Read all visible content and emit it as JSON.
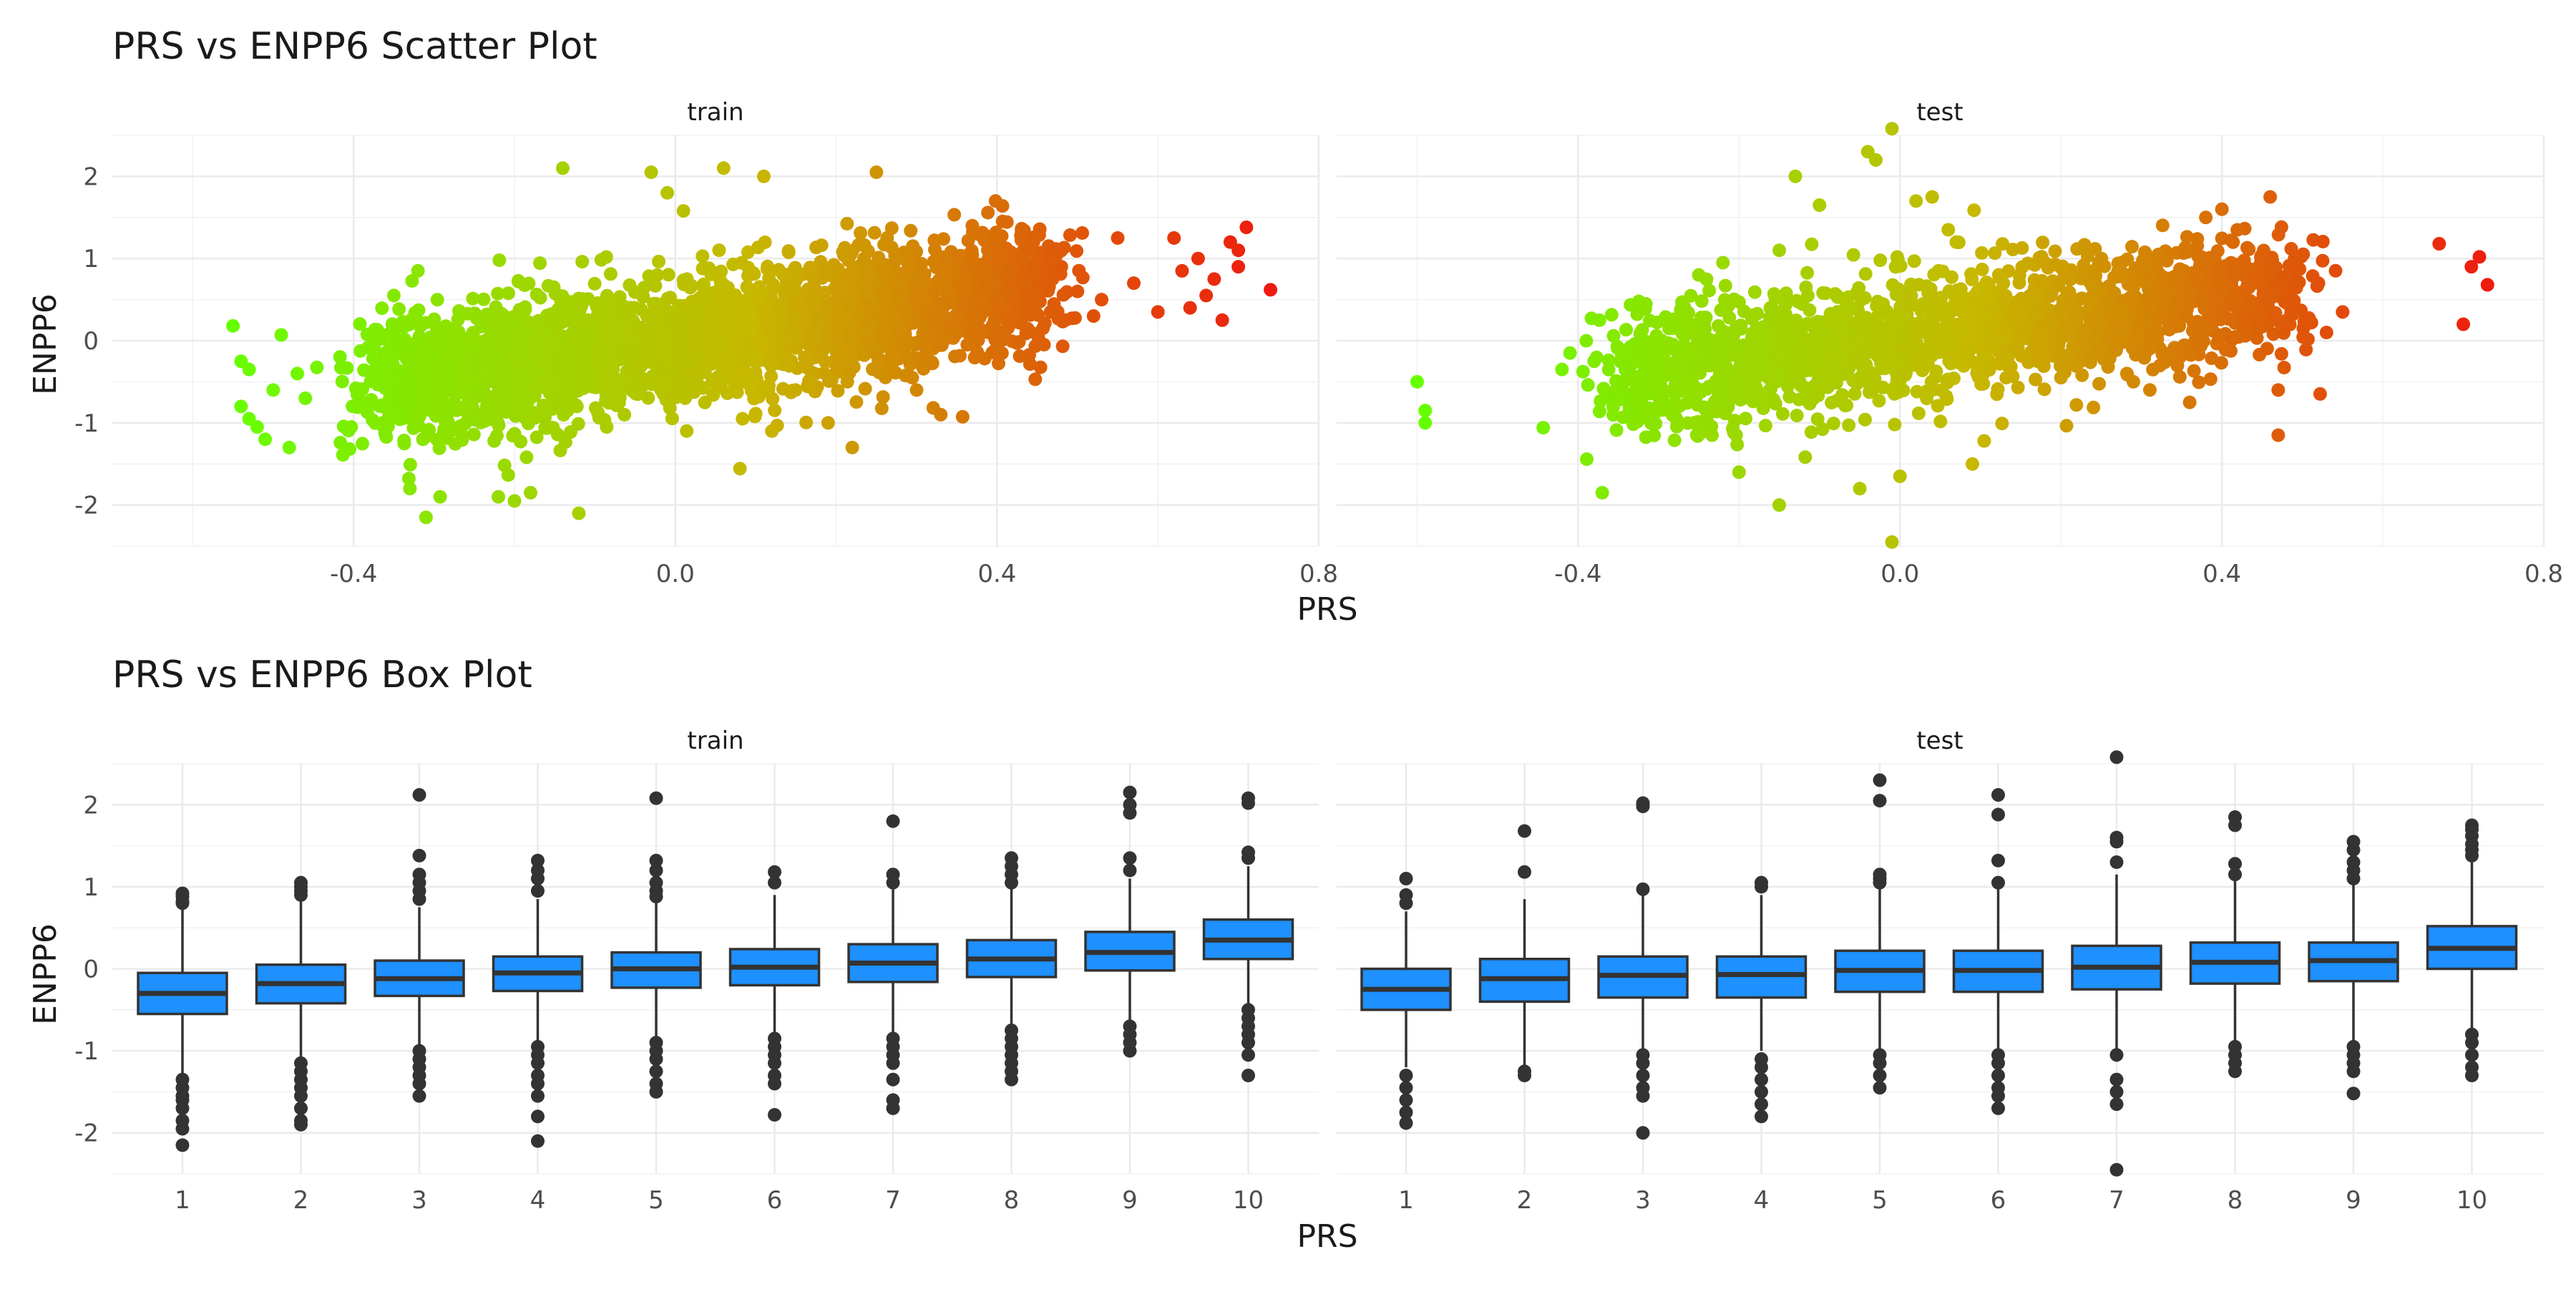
{
  "chart_data": [
    {
      "type": "scatter",
      "title": "PRS vs ENPP6 Scatter Plot",
      "xlabel": "PRS",
      "ylabel": "ENPP6",
      "facets": [
        "train",
        "test"
      ],
      "xlim": [
        -0.7,
        0.8
      ],
      "ylim": [
        -2.5,
        2.5
      ],
      "x_ticks": [
        -0.4,
        0.0,
        0.4,
        0.8
      ],
      "x_tick_labels": [
        "-0.4",
        "0.0",
        "0.4",
        "0.8"
      ],
      "y_ticks": [
        -2,
        -1,
        0,
        1,
        2
      ],
      "y_tick_labels": [
        "-2",
        "-1",
        "0",
        "1",
        "2"
      ],
      "grid": true,
      "color_scale": {
        "low": "#66ff00",
        "mid": "#c7b800",
        "high": "#ee1a0f",
        "mapped_to": "PRS"
      },
      "panels": [
        {
          "facet": "train",
          "trend": {
            "slope": 1.45,
            "intercept": 0.0
          },
          "core": {
            "x_min": -0.38,
            "x_max": 0.46,
            "y_spread": 0.95
          },
          "points": [
            {
              "x": -0.55,
              "y": 0.18
            },
            {
              "x": -0.54,
              "y": -0.25
            },
            {
              "x": -0.53,
              "y": -0.35
            },
            {
              "x": -0.54,
              "y": -0.8
            },
            {
              "x": -0.53,
              "y": -0.95
            },
            {
              "x": -0.52,
              "y": -1.05
            },
            {
              "x": -0.51,
              "y": -1.2
            },
            {
              "x": -0.5,
              "y": -0.6
            },
            {
              "x": -0.49,
              "y": 0.07
            },
            {
              "x": -0.48,
              "y": -1.3
            },
            {
              "x": -0.47,
              "y": -0.4
            },
            {
              "x": -0.46,
              "y": -0.7
            },
            {
              "x": -0.35,
              "y": 0.55
            },
            {
              "x": -0.32,
              "y": 0.85
            },
            {
              "x": -0.31,
              "y": -2.15
            },
            {
              "x": -0.33,
              "y": -1.8
            },
            {
              "x": -0.22,
              "y": -1.9
            },
            {
              "x": -0.2,
              "y": -1.95
            },
            {
              "x": -0.18,
              "y": -1.85
            },
            {
              "x": -0.12,
              "y": -2.1
            },
            {
              "x": -0.14,
              "y": 2.1
            },
            {
              "x": -0.03,
              "y": 2.05
            },
            {
              "x": -0.01,
              "y": 1.8
            },
            {
              "x": 0.06,
              "y": 2.1
            },
            {
              "x": 0.11,
              "y": 2.0
            },
            {
              "x": 0.25,
              "y": 2.05
            },
            {
              "x": 0.22,
              "y": -1.3
            },
            {
              "x": 0.19,
              "y": -1.0
            },
            {
              "x": 0.33,
              "y": -0.9
            },
            {
              "x": 0.3,
              "y": -0.6
            },
            {
              "x": 0.12,
              "y": -1.1
            },
            {
              "x": 0.48,
              "y": 0.9
            },
            {
              "x": 0.5,
              "y": 0.6
            },
            {
              "x": 0.53,
              "y": 0.5
            },
            {
              "x": 0.52,
              "y": 0.3
            },
            {
              "x": 0.55,
              "y": 1.25
            },
            {
              "x": 0.6,
              "y": 0.35
            },
            {
              "x": 0.62,
              "y": 1.25
            },
            {
              "x": 0.63,
              "y": 0.85
            },
            {
              "x": 0.64,
              "y": 0.4
            },
            {
              "x": 0.65,
              "y": 1.0
            },
            {
              "x": 0.67,
              "y": 0.75
            },
            {
              "x": 0.68,
              "y": 0.25
            },
            {
              "x": 0.69,
              "y": 1.2
            },
            {
              "x": 0.7,
              "y": 1.1
            },
            {
              "x": 0.71,
              "y": 1.38
            },
            {
              "x": 0.7,
              "y": 0.9
            },
            {
              "x": 0.74,
              "y": 0.62
            },
            {
              "x": 0.66,
              "y": 0.55
            },
            {
              "x": 0.57,
              "y": 0.7
            }
          ]
        },
        {
          "facet": "test",
          "trend": {
            "slope": 1.25,
            "intercept": 0.0
          },
          "core": {
            "x_min": -0.35,
            "x_max": 0.48,
            "y_spread": 0.9
          },
          "points": [
            {
              "x": -0.6,
              "y": -0.5
            },
            {
              "x": -0.59,
              "y": -0.85
            },
            {
              "x": -0.59,
              "y": -1.0
            },
            {
              "x": -0.42,
              "y": -0.35
            },
            {
              "x": -0.41,
              "y": -0.15
            },
            {
              "x": -0.38,
              "y": -0.25
            },
            {
              "x": -0.37,
              "y": -1.85
            },
            {
              "x": -0.2,
              "y": -1.6
            },
            {
              "x": -0.15,
              "y": -2.0
            },
            {
              "x": -0.05,
              "y": -1.8
            },
            {
              "x": -0.01,
              "y": -2.45
            },
            {
              "x": 0.0,
              "y": -1.65
            },
            {
              "x": 0.09,
              "y": -1.5
            },
            {
              "x": -0.13,
              "y": 2.0
            },
            {
              "x": -0.04,
              "y": 2.3
            },
            {
              "x": -0.03,
              "y": 2.2
            },
            {
              "x": -0.01,
              "y": 2.58
            },
            {
              "x": 0.02,
              "y": 1.7
            },
            {
              "x": 0.04,
              "y": 1.75
            },
            {
              "x": 0.06,
              "y": 1.35
            },
            {
              "x": 0.07,
              "y": 1.2
            },
            {
              "x": -0.1,
              "y": 1.65
            },
            {
              "x": -0.15,
              "y": 1.1
            },
            {
              "x": 0.4,
              "y": 1.6
            },
            {
              "x": 0.38,
              "y": 1.5
            },
            {
              "x": 0.46,
              "y": 1.75
            },
            {
              "x": 0.52,
              "y": 0.7
            },
            {
              "x": 0.55,
              "y": 0.35
            },
            {
              "x": 0.53,
              "y": 0.1
            },
            {
              "x": 0.47,
              "y": -0.6
            },
            {
              "x": 0.47,
              "y": -1.15
            },
            {
              "x": 0.36,
              "y": -0.75
            },
            {
              "x": 0.29,
              "y": -0.5
            },
            {
              "x": 0.2,
              "y": -0.45
            },
            {
              "x": 0.67,
              "y": 1.18
            },
            {
              "x": 0.7,
              "y": 0.2
            },
            {
              "x": 0.71,
              "y": 0.9
            },
            {
              "x": 0.72,
              "y": 1.02
            },
            {
              "x": 0.73,
              "y": 0.68
            },
            {
              "x": 0.43,
              "y": 0.9
            },
            {
              "x": 0.45,
              "y": 0.8
            },
            {
              "x": -0.25,
              "y": 0.8
            },
            {
              "x": -0.22,
              "y": 0.95
            }
          ]
        }
      ]
    },
    {
      "type": "box",
      "title": "PRS vs ENPP6 Box Plot",
      "xlabel": "PRS",
      "ylabel": "ENPP6",
      "facets": [
        "train",
        "test"
      ],
      "categories": [
        "1",
        "2",
        "3",
        "4",
        "5",
        "6",
        "7",
        "8",
        "9",
        "10"
      ],
      "ylim": [
        -2.5,
        2.5
      ],
      "y_ticks": [
        -2,
        -1,
        0,
        1,
        2
      ],
      "y_tick_labels": [
        "-2",
        "-1",
        "0",
        "1",
        "2"
      ],
      "grid": true,
      "box_fill": "#1e90ff",
      "box_outline": "#333333",
      "panels": [
        {
          "facet": "train",
          "boxes": [
            {
              "category": "1",
              "q1": -0.55,
              "median": -0.3,
              "q3": -0.05,
              "whisker_low": -1.3,
              "whisker_high": 0.75,
              "outliers": [
                0.92,
                0.88,
                0.82,
                0.8,
                -1.35,
                -1.45,
                -1.55,
                -1.6,
                -1.7,
                -1.85,
                -1.95,
                -2.15
              ]
            },
            {
              "category": "2",
              "q1": -0.42,
              "median": -0.18,
              "q3": 0.05,
              "whisker_low": -1.1,
              "whisker_high": 0.85,
              "outliers": [
                1.05,
                1.0,
                0.95,
                0.9,
                -1.15,
                -1.25,
                -1.35,
                -1.45,
                -1.55,
                -1.7,
                -1.85,
                -1.9
              ]
            },
            {
              "category": "3",
              "q1": -0.33,
              "median": -0.12,
              "q3": 0.1,
              "whisker_low": -0.95,
              "whisker_high": 0.75,
              "outliers": [
                2.12,
                1.38,
                1.15,
                1.05,
                0.95,
                0.85,
                -1.0,
                -1.1,
                -1.2,
                -1.3,
                -1.4,
                -1.55
              ]
            },
            {
              "category": "4",
              "q1": -0.27,
              "median": -0.05,
              "q3": 0.15,
              "whisker_low": -0.9,
              "whisker_high": 0.85,
              "outliers": [
                1.32,
                1.2,
                1.1,
                0.95,
                -0.95,
                -1.05,
                -1.15,
                -1.3,
                -1.4,
                -1.55,
                -1.8,
                -2.1
              ]
            },
            {
              "category": "5",
              "q1": -0.23,
              "median": 0.0,
              "q3": 0.2,
              "whisker_low": -0.85,
              "whisker_high": 0.8,
              "outliers": [
                2.08,
                1.32,
                1.2,
                1.05,
                0.95,
                0.88,
                -0.9,
                -1.0,
                -1.1,
                -1.25,
                -1.4,
                -1.5
              ]
            },
            {
              "category": "6",
              "q1": -0.2,
              "median": 0.02,
              "q3": 0.24,
              "whisker_low": -0.8,
              "whisker_high": 0.9,
              "outliers": [
                1.18,
                1.05,
                -0.85,
                -0.95,
                -1.05,
                -1.15,
                -1.3,
                -1.4,
                -1.78
              ]
            },
            {
              "category": "7",
              "q1": -0.16,
              "median": 0.07,
              "q3": 0.3,
              "whisker_low": -0.8,
              "whisker_high": 1.0,
              "outliers": [
                1.8,
                1.15,
                1.05,
                -0.85,
                -0.95,
                -1.05,
                -1.15,
                -1.35,
                -1.6,
                -1.7
              ]
            },
            {
              "category": "8",
              "q1": -0.1,
              "median": 0.12,
              "q3": 0.35,
              "whisker_low": -0.7,
              "whisker_high": 1.0,
              "outliers": [
                1.35,
                1.25,
                1.15,
                1.05,
                -0.75,
                -0.85,
                -0.95,
                -1.05,
                -1.15,
                -1.25,
                -1.35
              ]
            },
            {
              "category": "9",
              "q1": -0.02,
              "median": 0.2,
              "q3": 0.45,
              "whisker_low": -0.65,
              "whisker_high": 1.1,
              "outliers": [
                2.15,
                2.0,
                1.9,
                1.35,
                1.2,
                -0.7,
                -0.8,
                -0.9,
                -1.0
              ]
            },
            {
              "category": "10",
              "q1": 0.12,
              "median": 0.35,
              "q3": 0.6,
              "whisker_low": -0.45,
              "whisker_high": 1.25,
              "outliers": [
                2.08,
                2.02,
                1.42,
                1.35,
                -0.5,
                -0.6,
                -0.7,
                -0.8,
                -0.9,
                -1.05,
                -1.3
              ]
            }
          ]
        },
        {
          "facet": "test",
          "boxes": [
            {
              "category": "1",
              "q1": -0.5,
              "median": -0.25,
              "q3": 0.0,
              "whisker_low": -1.2,
              "whisker_high": 0.7,
              "outliers": [
                1.1,
                0.9,
                0.8,
                -1.3,
                -1.45,
                -1.6,
                -1.75,
                -1.88
              ]
            },
            {
              "category": "2",
              "q1": -0.4,
              "median": -0.12,
              "q3": 0.12,
              "whisker_low": -1.2,
              "whisker_high": 0.85,
              "outliers": [
                1.68,
                1.18,
                -1.25,
                -1.3
              ]
            },
            {
              "category": "3",
              "q1": -0.35,
              "median": -0.08,
              "q3": 0.15,
              "whisker_low": -1.0,
              "whisker_high": 0.9,
              "outliers": [
                2.02,
                1.98,
                0.97,
                -1.05,
                -1.15,
                -1.3,
                -1.45,
                -1.55,
                -2.0
              ]
            },
            {
              "category": "4",
              "q1": -0.35,
              "median": -0.07,
              "q3": 0.15,
              "whisker_low": -1.0,
              "whisker_high": 0.9,
              "outliers": [
                1.05,
                1.0,
                -1.1,
                -1.2,
                -1.35,
                -1.5,
                -1.65,
                -1.8
              ]
            },
            {
              "category": "5",
              "q1": -0.28,
              "median": -0.02,
              "q3": 0.22,
              "whisker_low": -1.0,
              "whisker_high": 1.0,
              "outliers": [
                2.3,
                2.05,
                1.15,
                1.1,
                1.05,
                -1.05,
                -1.15,
                -1.3,
                -1.45
              ]
            },
            {
              "category": "6",
              "q1": -0.28,
              "median": -0.02,
              "q3": 0.22,
              "whisker_low": -1.0,
              "whisker_high": 1.0,
              "outliers": [
                2.12,
                1.88,
                1.32,
                1.05,
                -1.05,
                -1.15,
                -1.3,
                -1.45,
                -1.55,
                -1.7
              ]
            },
            {
              "category": "7",
              "q1": -0.25,
              "median": 0.02,
              "q3": 0.28,
              "whisker_low": -1.0,
              "whisker_high": 1.15,
              "outliers": [
                2.58,
                1.6,
                1.55,
                1.3,
                -1.05,
                -1.35,
                -1.5,
                -1.65,
                -2.45
              ]
            },
            {
              "category": "8",
              "q1": -0.18,
              "median": 0.08,
              "q3": 0.32,
              "whisker_low": -0.9,
              "whisker_high": 1.1,
              "outliers": [
                1.85,
                1.75,
                1.28,
                1.15,
                -0.95,
                -1.05,
                -1.15,
                -1.25
              ]
            },
            {
              "category": "9",
              "q1": -0.15,
              "median": 0.1,
              "q3": 0.32,
              "whisker_low": -0.9,
              "whisker_high": 1.05,
              "outliers": [
                1.55,
                1.45,
                1.3,
                1.2,
                1.1,
                -0.95,
                -1.05,
                -1.15,
                -1.25,
                -1.52
              ]
            },
            {
              "category": "10",
              "q1": 0.0,
              "median": 0.25,
              "q3": 0.52,
              "whisker_low": -0.75,
              "whisker_high": 1.3,
              "outliers": [
                1.75,
                1.7,
                1.62,
                1.52,
                1.45,
                1.38,
                -0.8,
                -0.9,
                -1.05,
                -1.2,
                -1.3
              ]
            }
          ]
        }
      ]
    }
  ]
}
